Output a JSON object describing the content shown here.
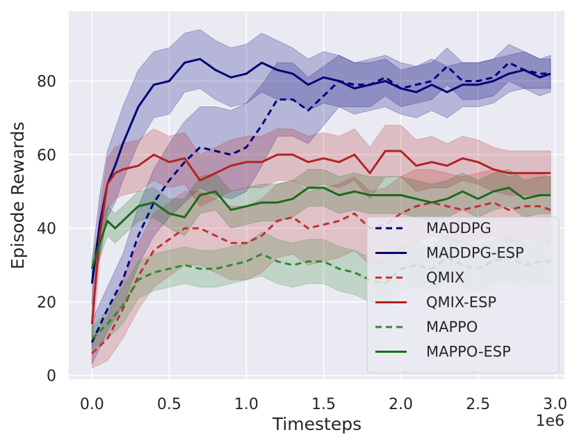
{
  "chart_data": {
    "type": "line",
    "title": "",
    "xlabel": "Timesteps",
    "ylabel": "Episode Rewards",
    "x_offset_label": "1e6",
    "xlim": [
      -0.15,
      3.06
    ],
    "ylim": [
      -1,
      99
    ],
    "x_ticks": [
      0.0,
      0.5,
      1.0,
      1.5,
      2.0,
      2.5,
      3.0
    ],
    "x_tick_labels": [
      "0.0",
      "0.5",
      "1.0",
      "1.5",
      "2.0",
      "2.5",
      "3.0"
    ],
    "y_ticks": [
      0,
      20,
      40,
      60,
      80
    ],
    "y_tick_labels": [
      "0",
      "20",
      "40",
      "60",
      "80"
    ],
    "grid": true,
    "legend_position": "lower-right",
    "series": [
      {
        "name": "MADDPG",
        "color": "#00007a",
        "dashed": true,
        "x": [
          0,
          0.1,
          0.2,
          0.3,
          0.4,
          0.5,
          0.6,
          0.7,
          0.8,
          0.9,
          1.0,
          1.1,
          1.2,
          1.3,
          1.4,
          1.5,
          1.6,
          1.7,
          1.8,
          1.9,
          2.0,
          2.1,
          2.2,
          2.3,
          2.4,
          2.5,
          2.6,
          2.7,
          2.8,
          2.9,
          2.97
        ],
        "y": [
          9,
          18,
          26,
          38,
          47,
          53,
          58,
          62,
          61,
          60,
          62,
          68,
          75,
          75,
          72,
          76,
          80,
          79,
          79,
          81,
          78,
          79,
          80,
          84,
          80,
          80,
          81,
          85,
          83,
          82,
          82
        ],
        "band": [
          6,
          6,
          7,
          8,
          9,
          10,
          11,
          11,
          12,
          12,
          12,
          11,
          10,
          10,
          9,
          8,
          7,
          6,
          6,
          5,
          5,
          5,
          5,
          5,
          5,
          5,
          5,
          5,
          5,
          4,
          4
        ]
      },
      {
        "name": "MADDPG-ESP",
        "color": "#00007a",
        "dashed": false,
        "x": [
          0,
          0.05,
          0.1,
          0.15,
          0.2,
          0.25,
          0.3,
          0.4,
          0.5,
          0.6,
          0.7,
          0.8,
          0.9,
          1.0,
          1.1,
          1.2,
          1.3,
          1.4,
          1.5,
          1.6,
          1.7,
          1.8,
          1.9,
          2.0,
          2.1,
          2.2,
          2.3,
          2.4,
          2.5,
          2.6,
          2.7,
          2.8,
          2.9,
          2.97
        ],
        "y": [
          25,
          41,
          52,
          57,
          63,
          68,
          73,
          79,
          80,
          85,
          86,
          83,
          81,
          82,
          85,
          83,
          82,
          79,
          81,
          80,
          78,
          79,
          80,
          78,
          77,
          79,
          77,
          79,
          79,
          80,
          82,
          83,
          81,
          82
        ],
        "band": [
          6,
          8,
          9,
          10,
          10,
          10,
          10,
          9,
          9,
          8,
          8,
          8,
          8,
          8,
          8,
          8,
          7,
          7,
          7,
          7,
          7,
          7,
          7,
          7,
          7,
          7,
          7,
          6,
          6,
          6,
          5,
          5,
          5,
          5
        ]
      },
      {
        "name": "QMIX",
        "color": "#c03030",
        "dashed": true,
        "x": [
          0,
          0.1,
          0.2,
          0.3,
          0.4,
          0.5,
          0.6,
          0.7,
          0.8,
          0.9,
          1.0,
          1.1,
          1.2,
          1.3,
          1.4,
          1.5,
          1.6,
          1.7,
          1.8,
          1.9,
          2.0,
          2.1,
          2.2,
          2.3,
          2.4,
          2.5,
          2.6,
          2.7,
          2.8,
          2.9,
          2.97
        ],
        "y": [
          6,
          10,
          18,
          27,
          34,
          37,
          40,
          40,
          38,
          36,
          36,
          38,
          42,
          43,
          40,
          41,
          42,
          44,
          40,
          41,
          44,
          46,
          47,
          46,
          45,
          46,
          47,
          45,
          46,
          46,
          45
        ],
        "band": [
          4,
          6,
          8,
          9,
          10,
          10,
          10,
          10,
          10,
          10,
          10,
          10,
          10,
          10,
          10,
          10,
          10,
          10,
          10,
          10,
          10,
          10,
          9,
          9,
          9,
          9,
          9,
          9,
          9,
          9,
          9
        ]
      },
      {
        "name": "QMIX-ESP",
        "color": "#b22222",
        "dashed": false,
        "x": [
          0,
          0.05,
          0.1,
          0.15,
          0.2,
          0.3,
          0.4,
          0.5,
          0.6,
          0.7,
          0.8,
          0.9,
          1.0,
          1.1,
          1.2,
          1.3,
          1.4,
          1.5,
          1.6,
          1.7,
          1.8,
          1.9,
          2.0,
          2.1,
          2.2,
          2.3,
          2.4,
          2.5,
          2.6,
          2.7,
          2.8,
          2.9,
          2.97
        ],
        "y": [
          14,
          38,
          52,
          55,
          56,
          57,
          60,
          58,
          59,
          53,
          55,
          57,
          58,
          58,
          60,
          60,
          58,
          59,
          58,
          60,
          55,
          61,
          61,
          57,
          58,
          57,
          59,
          58,
          56,
          55,
          55,
          55,
          55
        ],
        "band": [
          6,
          7,
          7,
          7,
          7,
          7,
          7,
          7,
          7,
          7,
          7,
          7,
          7,
          7,
          7,
          7,
          7,
          7,
          7,
          7,
          7,
          7,
          7,
          7,
          7,
          6,
          6,
          6,
          6,
          6,
          6,
          6,
          6
        ]
      },
      {
        "name": "MAPPO",
        "color": "#2e8b2e",
        "dashed": true,
        "x": [
          0,
          0.1,
          0.2,
          0.3,
          0.4,
          0.5,
          0.6,
          0.7,
          0.8,
          0.9,
          1.0,
          1.1,
          1.2,
          1.3,
          1.4,
          1.5,
          1.6,
          1.7,
          1.8,
          1.9,
          2.0,
          2.1,
          2.2,
          2.3,
          2.4,
          2.5,
          2.6,
          2.7,
          2.8,
          2.9,
          2.97
        ],
        "y": [
          10,
          14,
          19,
          26,
          28,
          29,
          30,
          29,
          29,
          30,
          31,
          33,
          31,
          30,
          31,
          31,
          29,
          28,
          26,
          25,
          29,
          30,
          29,
          32,
          30,
          29,
          31,
          32,
          30,
          31,
          31
        ],
        "band": [
          3,
          4,
          5,
          5,
          5,
          5,
          5,
          5,
          5,
          5,
          5,
          6,
          6,
          6,
          6,
          6,
          6,
          6,
          6,
          6,
          6,
          6,
          6,
          6,
          6,
          6,
          6,
          6,
          6,
          6,
          6
        ]
      },
      {
        "name": "MAPPO-ESP",
        "color": "#1a6a1a",
        "dashed": false,
        "x": [
          0,
          0.05,
          0.1,
          0.15,
          0.2,
          0.25,
          0.3,
          0.4,
          0.5,
          0.6,
          0.7,
          0.8,
          0.9,
          1.0,
          1.1,
          1.2,
          1.3,
          1.4,
          1.5,
          1.6,
          1.7,
          1.8,
          1.9,
          2.0,
          2.1,
          2.2,
          2.3,
          2.4,
          2.5,
          2.6,
          2.7,
          2.8,
          2.9,
          2.97
        ],
        "y": [
          29,
          36,
          42,
          40,
          42,
          44,
          46,
          47,
          44,
          43,
          49,
          50,
          45,
          46,
          47,
          47,
          48,
          51,
          51,
          49,
          50,
          49,
          49,
          49,
          48,
          47,
          48,
          50,
          48,
          50,
          51,
          48,
          49,
          49
        ],
        "band": [
          3,
          4,
          4,
          4,
          4,
          4,
          4,
          4,
          4,
          5,
          5,
          5,
          5,
          5,
          5,
          5,
          5,
          5,
          5,
          5,
          5,
          5,
          5,
          5,
          5,
          5,
          5,
          5,
          5,
          5,
          5,
          5,
          5,
          5
        ]
      }
    ]
  }
}
